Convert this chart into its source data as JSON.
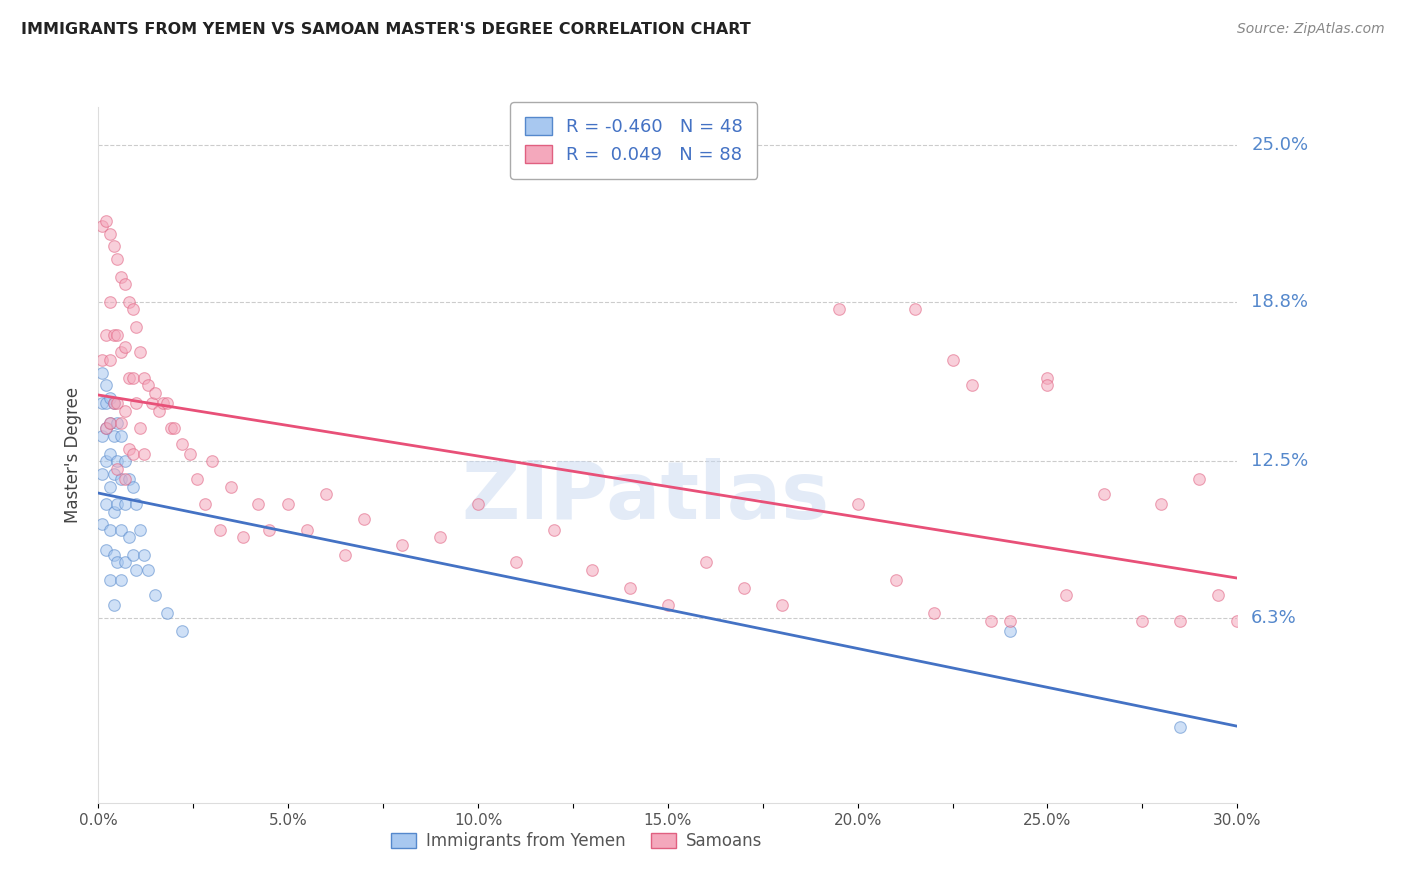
{
  "title": "IMMIGRANTS FROM YEMEN VS SAMOAN MASTER'S DEGREE CORRELATION CHART",
  "source": "Source: ZipAtlas.com",
  "ylabel": "Master's Degree",
  "xlim": [
    0.0,
    0.3
  ],
  "ylim": [
    -0.01,
    0.265
  ],
  "xtick_labels": [
    "0.0%",
    "",
    "5.0%",
    "",
    "10.0%",
    "",
    "15.0%",
    "",
    "20.0%",
    "",
    "25.0%",
    "",
    "30.0%"
  ],
  "xtick_values": [
    0.0,
    0.025,
    0.05,
    0.075,
    0.1,
    0.125,
    0.15,
    0.175,
    0.2,
    0.225,
    0.25,
    0.275,
    0.3
  ],
  "ytick_right_labels": [
    "25.0%",
    "18.8%",
    "12.5%",
    "6.3%"
  ],
  "ytick_right_values": [
    0.25,
    0.188,
    0.125,
    0.063
  ],
  "grid_color": "#cccccc",
  "background_color": "#ffffff",
  "watermark_text": "ZIPatlas",
  "legend_blue_R": "-0.460",
  "legend_blue_N": "48",
  "legend_pink_R": "0.049",
  "legend_pink_N": "88",
  "blue_color": "#A8C8F0",
  "pink_color": "#F4A8BC",
  "blue_edge_color": "#5588CC",
  "pink_edge_color": "#E06080",
  "blue_line_color": "#4472C4",
  "pink_line_color": "#E85078",
  "title_color": "#222222",
  "right_label_color": "#5588CC",
  "scatter_alpha": 0.55,
  "scatter_size": 70,
  "blue_scatter_x": [
    0.001,
    0.001,
    0.001,
    0.001,
    0.001,
    0.002,
    0.002,
    0.002,
    0.002,
    0.002,
    0.002,
    0.003,
    0.003,
    0.003,
    0.003,
    0.003,
    0.003,
    0.004,
    0.004,
    0.004,
    0.004,
    0.004,
    0.004,
    0.005,
    0.005,
    0.005,
    0.005,
    0.006,
    0.006,
    0.006,
    0.006,
    0.007,
    0.007,
    0.007,
    0.008,
    0.008,
    0.009,
    0.009,
    0.01,
    0.01,
    0.011,
    0.012,
    0.013,
    0.015,
    0.018,
    0.022,
    0.24,
    0.285
  ],
  "blue_scatter_y": [
    0.16,
    0.148,
    0.135,
    0.12,
    0.1,
    0.155,
    0.148,
    0.138,
    0.125,
    0.108,
    0.09,
    0.15,
    0.14,
    0.128,
    0.115,
    0.098,
    0.078,
    0.148,
    0.135,
    0.12,
    0.105,
    0.088,
    0.068,
    0.14,
    0.125,
    0.108,
    0.085,
    0.135,
    0.118,
    0.098,
    0.078,
    0.125,
    0.108,
    0.085,
    0.118,
    0.095,
    0.115,
    0.088,
    0.108,
    0.082,
    0.098,
    0.088,
    0.082,
    0.072,
    0.065,
    0.058,
    0.058,
    0.02
  ],
  "pink_scatter_x": [
    0.001,
    0.001,
    0.002,
    0.002,
    0.002,
    0.003,
    0.003,
    0.003,
    0.003,
    0.004,
    0.004,
    0.004,
    0.005,
    0.005,
    0.005,
    0.005,
    0.006,
    0.006,
    0.006,
    0.007,
    0.007,
    0.007,
    0.007,
    0.008,
    0.008,
    0.008,
    0.009,
    0.009,
    0.009,
    0.01,
    0.01,
    0.011,
    0.011,
    0.012,
    0.012,
    0.013,
    0.014,
    0.015,
    0.016,
    0.017,
    0.018,
    0.019,
    0.02,
    0.022,
    0.024,
    0.026,
    0.028,
    0.03,
    0.032,
    0.035,
    0.038,
    0.042,
    0.045,
    0.05,
    0.055,
    0.06,
    0.065,
    0.07,
    0.08,
    0.09,
    0.1,
    0.11,
    0.12,
    0.13,
    0.14,
    0.15,
    0.16,
    0.17,
    0.18,
    0.195,
    0.2,
    0.21,
    0.22,
    0.23,
    0.24,
    0.25,
    0.255,
    0.265,
    0.275,
    0.28,
    0.285,
    0.29,
    0.295,
    0.3,
    0.215,
    0.225,
    0.235,
    0.25
  ],
  "pink_scatter_y": [
    0.218,
    0.165,
    0.22,
    0.175,
    0.138,
    0.215,
    0.188,
    0.165,
    0.14,
    0.21,
    0.175,
    0.148,
    0.205,
    0.175,
    0.148,
    0.122,
    0.198,
    0.168,
    0.14,
    0.195,
    0.17,
    0.145,
    0.118,
    0.188,
    0.158,
    0.13,
    0.185,
    0.158,
    0.128,
    0.178,
    0.148,
    0.168,
    0.138,
    0.158,
    0.128,
    0.155,
    0.148,
    0.152,
    0.145,
    0.148,
    0.148,
    0.138,
    0.138,
    0.132,
    0.128,
    0.118,
    0.108,
    0.125,
    0.098,
    0.115,
    0.095,
    0.108,
    0.098,
    0.108,
    0.098,
    0.112,
    0.088,
    0.102,
    0.092,
    0.095,
    0.108,
    0.085,
    0.098,
    0.082,
    0.075,
    0.068,
    0.085,
    0.075,
    0.068,
    0.185,
    0.108,
    0.078,
    0.065,
    0.155,
    0.062,
    0.158,
    0.072,
    0.112,
    0.062,
    0.108,
    0.062,
    0.118,
    0.072,
    0.062,
    0.185,
    0.165,
    0.062,
    0.155
  ]
}
